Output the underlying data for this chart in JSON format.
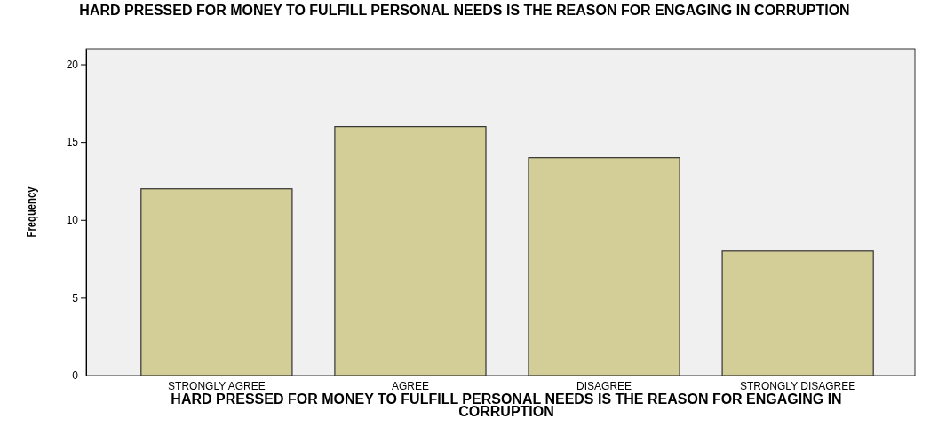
{
  "chart_data": {
    "type": "bar",
    "title": "HARD PRESSED FOR MONEY TO FULFILL PERSONAL NEEDS IS THE REASON FOR ENGAGING IN CORRUPTION",
    "xlabel": "HARD PRESSED FOR MONEY TO FULFILL PERSONAL NEEDS IS THE REASON FOR ENGAGING IN CORRUPTION",
    "ylabel": "Frequency",
    "categories": [
      "STRONGLY AGREE",
      "AGREE",
      "DISAGREE",
      "STRONGLY DISAGREE"
    ],
    "values": [
      12,
      16,
      14,
      8
    ],
    "color": "#d3cd98",
    "ylim": [
      0,
      21
    ],
    "yticks": [
      0,
      5,
      10,
      15,
      20
    ]
  }
}
